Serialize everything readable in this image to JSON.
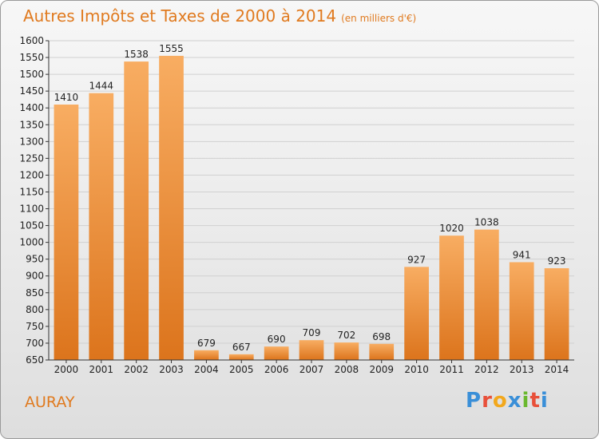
{
  "header": {
    "title": "Autres Impôts et Taxes de 2000 à 2014",
    "unit": "(en milliers d'€)"
  },
  "footer": {
    "city": "AURAY",
    "logo_letters": [
      "P",
      "r",
      "o",
      "x",
      "i",
      "t",
      "i"
    ],
    "logo_colors": [
      "#3a8fd8",
      "#e8503a",
      "#f2a81d",
      "#3a8fd8",
      "#6ab82e",
      "#e8503a",
      "#3a8fd8"
    ]
  },
  "colors": {
    "bar_light": "#f8ad62",
    "bar_dark": "#dc741c",
    "title": "#e07a1f",
    "grid": "#d0d0d0",
    "axis": "#333333"
  },
  "chart_data": {
    "type": "bar",
    "title": "Autres Impôts et Taxes de 2000 à 2014",
    "subtitle": "(en milliers d'€)",
    "categories": [
      "2000",
      "2001",
      "2002",
      "2003",
      "2004",
      "2005",
      "2006",
      "2007",
      "2008",
      "2009",
      "2010",
      "2011",
      "2012",
      "2013",
      "2014"
    ],
    "values": [
      1410,
      1444,
      1538,
      1555,
      679,
      667,
      690,
      709,
      702,
      698,
      927,
      1020,
      1038,
      941,
      923
    ],
    "ylim": [
      650,
      1600
    ],
    "yticks": [
      650,
      700,
      750,
      800,
      850,
      900,
      950,
      1000,
      1050,
      1100,
      1150,
      1200,
      1250,
      1300,
      1350,
      1400,
      1450,
      1500,
      1550,
      1600
    ],
    "grid": true,
    "legend": "none"
  }
}
